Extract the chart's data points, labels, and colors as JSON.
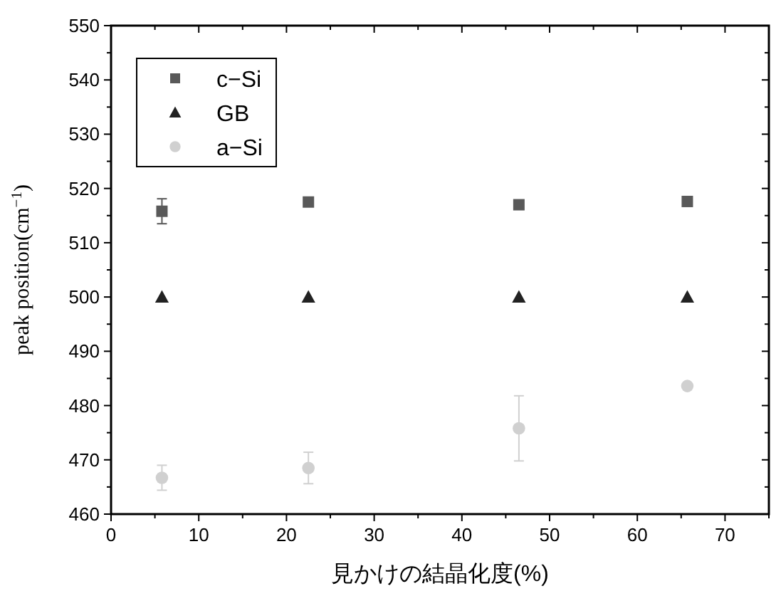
{
  "chart_data": {
    "type": "scatter",
    "xlabel": "見かけの結晶化度(%)",
    "ylabel": "peak position(cm$^{−1}$)",
    "x": [
      5.8,
      22.5,
      46.5,
      65.7
    ],
    "series": [
      {
        "name": "c−Si",
        "color": "#595959",
        "marker": "square",
        "values": [
          515.8,
          517.5,
          517.0,
          517.6
        ],
        "errors": [
          2.3,
          null,
          null,
          null
        ]
      },
      {
        "name": "GB",
        "color": "#222222",
        "marker": "triangle",
        "values": [
          500,
          500,
          500,
          500
        ]
      },
      {
        "name": "a−Si",
        "color": "#d0d0d0",
        "marker": "circle",
        "values": [
          466.7,
          468.5,
          475.8,
          483.6
        ],
        "errors": [
          2.3,
          2.9,
          6.0,
          null
        ]
      }
    ],
    "xlim": [
      0,
      75
    ],
    "xticks": [
      0,
      10,
      20,
      30,
      40,
      50,
      60,
      70
    ],
    "ylim": [
      460,
      550
    ],
    "yticks": [
      460,
      470,
      480,
      490,
      500,
      510,
      520,
      530,
      540,
      550
    ],
    "grid": false,
    "legend": "top left"
  }
}
